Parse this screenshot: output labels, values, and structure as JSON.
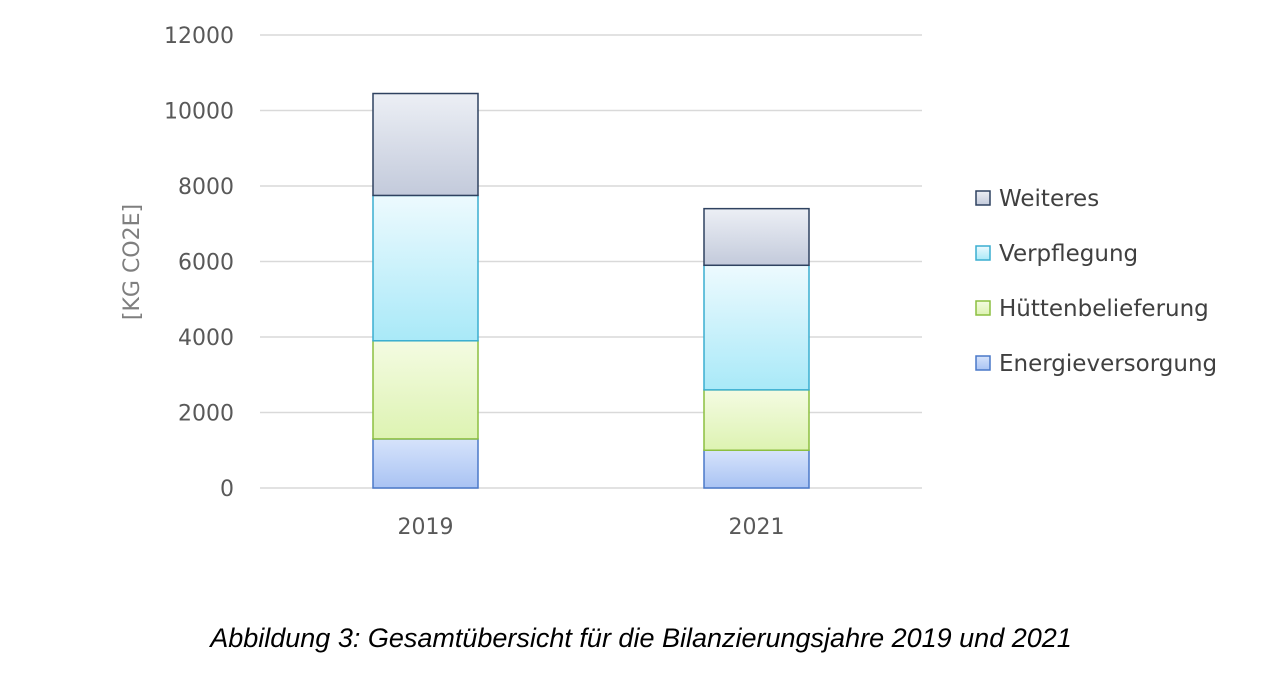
{
  "caption": "Abbildung 3: Gesamtübersicht für die Bilanzierungsjahre 2019 und 2021",
  "chart_data": {
    "type": "bar",
    "stacked": true,
    "categories": [
      "2019",
      "2021"
    ],
    "series": [
      {
        "name": "Energieversorgung",
        "values": [
          1300,
          1000
        ],
        "fill_top": "#d6e3fb",
        "fill_bottom": "#a9c3f3",
        "stroke": "#4a78c8"
      },
      {
        "name": "Hüttenbelieferung",
        "values": [
          2600,
          1600
        ],
        "fill_top": "#f4fbe2",
        "fill_bottom": "#ddf3b2",
        "stroke": "#8cbf40"
      },
      {
        "name": "Verpflegung",
        "values": [
          3850,
          3300
        ],
        "fill_top": "#edfafe",
        "fill_bottom": "#a9e9f8",
        "stroke": "#3aaed0"
      },
      {
        "name": "Weiteres",
        "values": [
          2700,
          1500
        ],
        "fill_top": "#eceff5",
        "fill_bottom": "#c3cadb",
        "stroke": "#2f4260"
      }
    ],
    "ylabel": "[KG CO2E]",
    "xlabel": "",
    "ylim": [
      0,
      12000
    ],
    "yticks": [
      0,
      2000,
      4000,
      6000,
      8000,
      10000,
      12000
    ],
    "grid": true,
    "legend_position": "right"
  }
}
